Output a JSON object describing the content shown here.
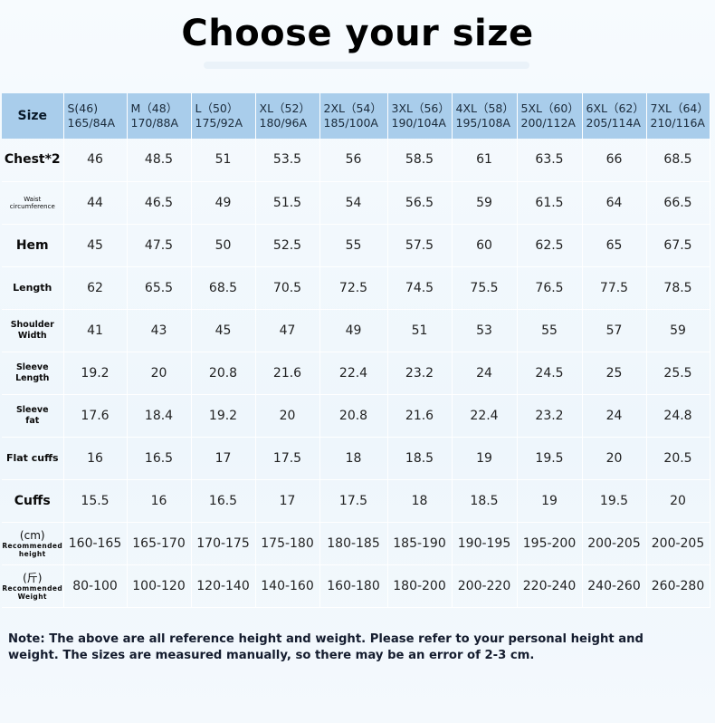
{
  "title": "Choose your size",
  "header": {
    "corner": "Size",
    "sizes": [
      {
        "name": "S(46)",
        "code": "165/84A"
      },
      {
        "name": "M（48）",
        "code": "170/88A"
      },
      {
        "name": "L（50）",
        "code": "175/92A"
      },
      {
        "name": "XL（52）",
        "code": "180/96A"
      },
      {
        "name": "2XL（54）",
        "code": "185/100A"
      },
      {
        "name": "3XL（56）",
        "code": "190/104A"
      },
      {
        "name": "4XL（58）",
        "code": "195/108A"
      },
      {
        "name": "5XL（60）",
        "code": "200/112A"
      },
      {
        "name": "6XL（62）",
        "code": "205/114A"
      },
      {
        "name": "7XL（64）",
        "code": "210/116A"
      }
    ]
  },
  "rows": [
    {
      "label": "Chest*2",
      "values": [
        "46",
        "48.5",
        "51",
        "53.5",
        "56",
        "58.5",
        "61",
        "63.5",
        "66",
        "68.5"
      ]
    },
    {
      "label_line1": "Waist",
      "label_line2": "circumference",
      "values": [
        "44",
        "46.5",
        "49",
        "51.5",
        "54",
        "56.5",
        "59",
        "61.5",
        "64",
        "66.5"
      ]
    },
    {
      "label": "Hem",
      "values": [
        "45",
        "47.5",
        "50",
        "52.5",
        "55",
        "57.5",
        "60",
        "62.5",
        "65",
        "67.5"
      ]
    },
    {
      "label": "Length",
      "values": [
        "62",
        "65.5",
        "68.5",
        "70.5",
        "72.5",
        "74.5",
        "75.5",
        "76.5",
        "77.5",
        "78.5"
      ]
    },
    {
      "label_line1": "Shoulder",
      "label_line2": "Width",
      "values": [
        "41",
        "43",
        "45",
        "47",
        "49",
        "51",
        "53",
        "55",
        "57",
        "59"
      ]
    },
    {
      "label_line1": "Sleeve",
      "label_line2": "Length",
      "values": [
        "19.2",
        "20",
        "20.8",
        "21.6",
        "22.4",
        "23.2",
        "24",
        "24.5",
        "25",
        "25.5"
      ]
    },
    {
      "label_line1": "Sleeve",
      "label_line2": "fat",
      "values": [
        "17.6",
        "18.4",
        "19.2",
        "20",
        "20.8",
        "21.6",
        "22.4",
        "23.2",
        "24",
        "24.8"
      ]
    },
    {
      "label": "Flat cuffs",
      "values": [
        "16",
        "16.5",
        "17",
        "17.5",
        "18",
        "18.5",
        "19",
        "19.5",
        "20",
        "20.5"
      ]
    },
    {
      "label": "Cuffs",
      "values": [
        "15.5",
        "16",
        "16.5",
        "17",
        "17.5",
        "18",
        "18.5",
        "19",
        "19.5",
        "20"
      ]
    },
    {
      "unit": "(cm)",
      "label_line1": "Recommended",
      "label_line2": "height",
      "values": [
        "160-165",
        "165-170",
        "170-175",
        "175-180",
        "180-185",
        "185-190",
        "190-195",
        "195-200",
        "200-205",
        "200-205"
      ]
    },
    {
      "unit": "(斤)",
      "label_line1": "Recommended",
      "label_line2": "Weight",
      "values": [
        "80-100",
        "100-120",
        "120-140",
        "140-160",
        "160-180",
        "180-200",
        "200-220",
        "220-240",
        "240-260",
        "260-280"
      ]
    }
  ],
  "note": "Note: The above are all reference height and weight. Please refer to your personal height and weight. The sizes are measured manually, so there may be an error of 2-3 cm.",
  "colors": {
    "header_bg": "#a9cdeb",
    "page_bg": "#f2f8fd",
    "text": "#111111"
  }
}
